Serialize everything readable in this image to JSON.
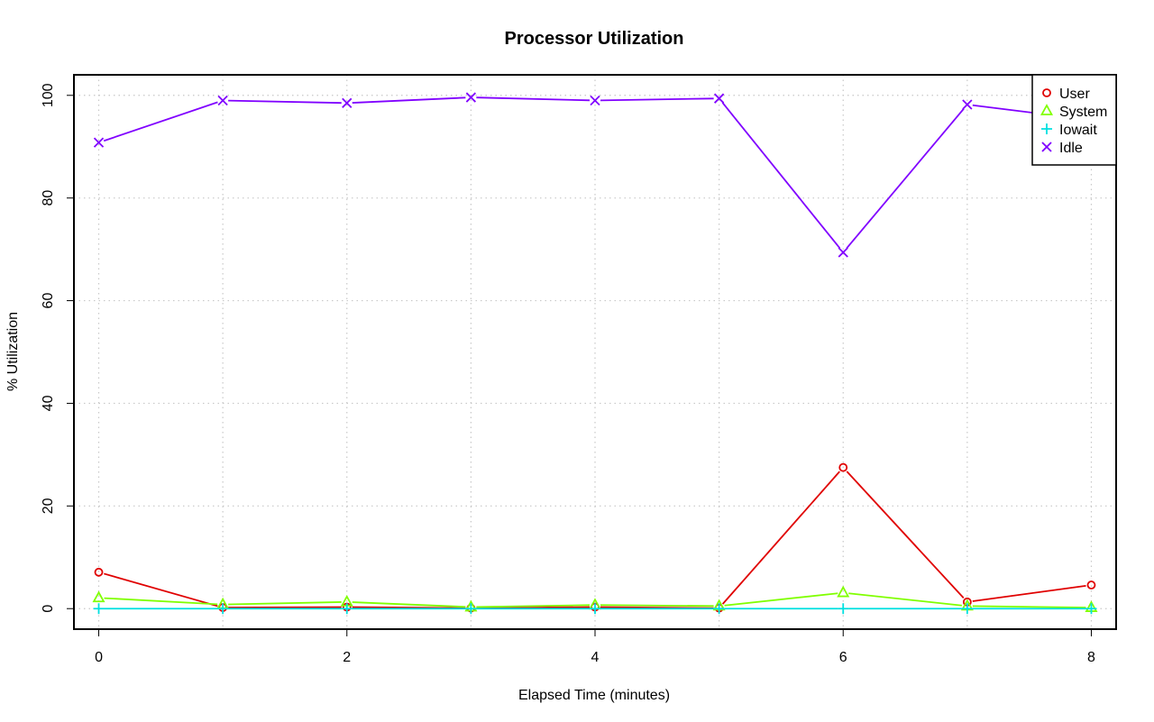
{
  "chart_data": {
    "type": "line",
    "title": "Processor Utilization",
    "xlabel": "Elapsed Time (minutes)",
    "ylabel": "% Utilization",
    "xlim": [
      -0.2,
      8.2
    ],
    "ylim": [
      -4,
      104
    ],
    "x_ticks": [
      0,
      2,
      4,
      6,
      8
    ],
    "y_ticks": [
      0,
      20,
      40,
      60,
      80,
      100
    ],
    "grid": true,
    "legend_position": "top-right",
    "x": [
      0,
      1,
      2,
      3,
      4,
      5,
      6,
      7,
      8
    ],
    "series": [
      {
        "name": "User",
        "color": "#e00000",
        "marker": "circle",
        "values": [
          7.1,
          0.2,
          0.3,
          0.1,
          0.3,
          0.1,
          27.5,
          1.3,
          4.6
        ]
      },
      {
        "name": "System",
        "color": "#80ff00",
        "marker": "triangle",
        "values": [
          2.1,
          0.8,
          1.3,
          0.3,
          0.7,
          0.5,
          3.1,
          0.5,
          0.2
        ]
      },
      {
        "name": "Iowait",
        "color": "#00e0e0",
        "marker": "plus",
        "values": [
          0.0,
          0.0,
          0.0,
          0.0,
          0.0,
          0.0,
          0.0,
          0.0,
          0.0
        ]
      },
      {
        "name": "Idle",
        "color": "#8000ff",
        "marker": "cross",
        "values": [
          90.8,
          99.0,
          98.5,
          99.6,
          99.0,
          99.4,
          69.4,
          98.2,
          95.2
        ]
      }
    ]
  }
}
